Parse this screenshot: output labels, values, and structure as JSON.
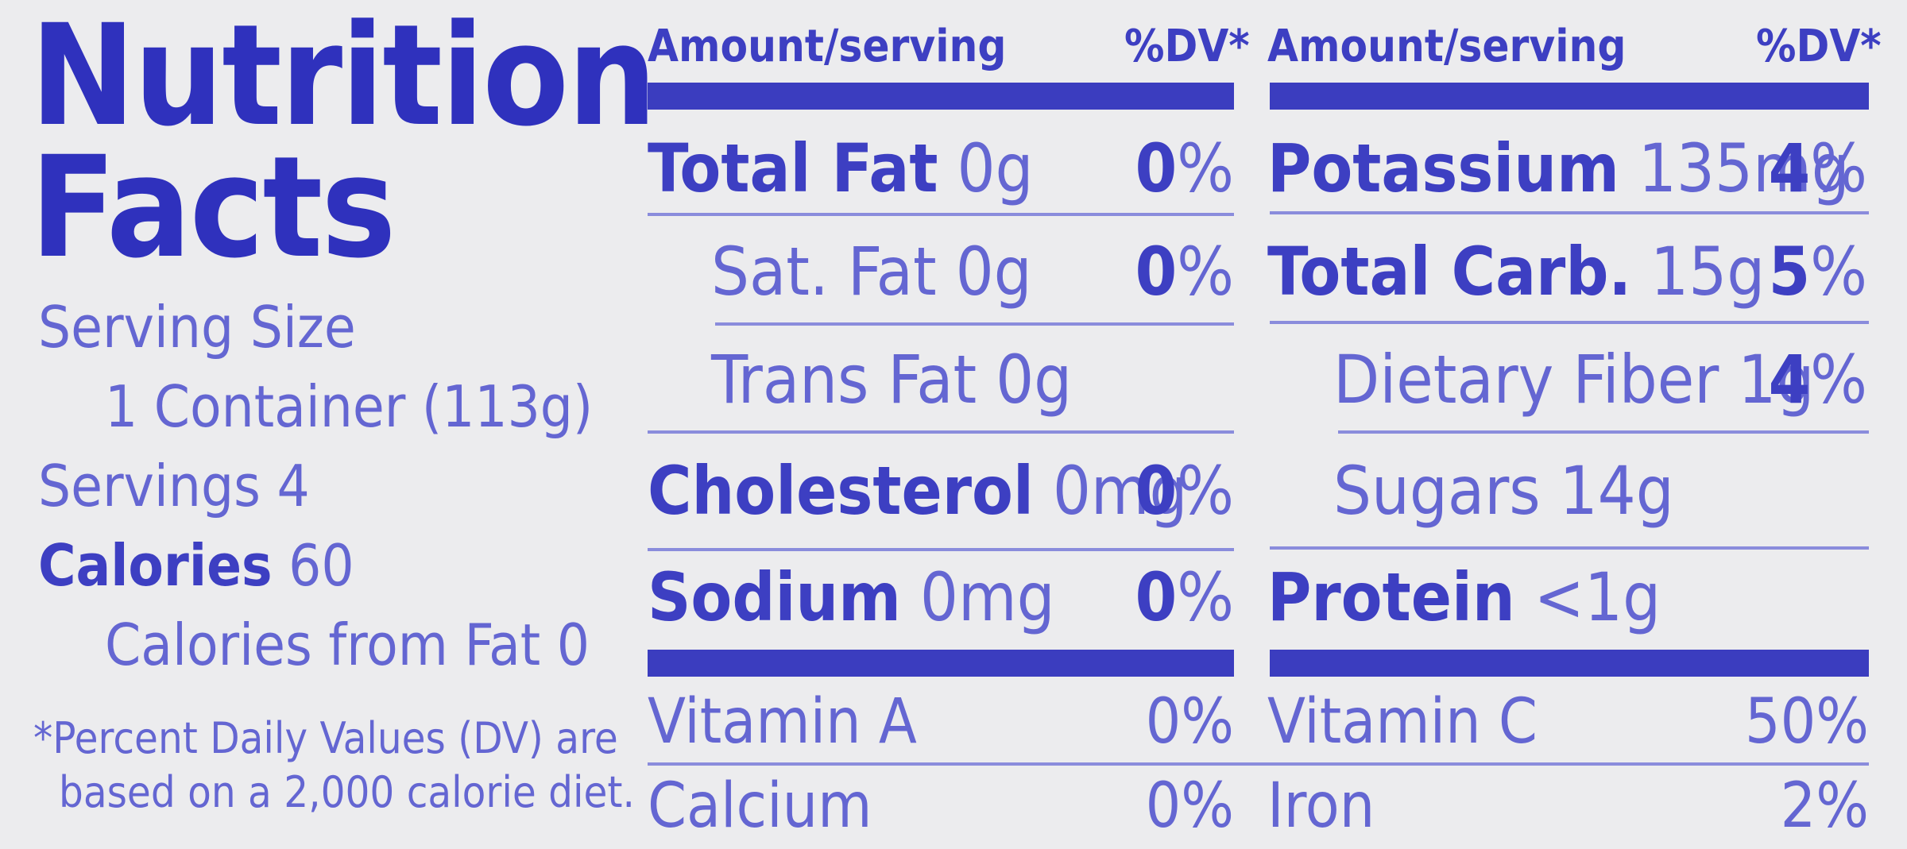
{
  "title_line1": "Nutrition",
  "title_line2": "Facts",
  "serving": {
    "size_label": "Serving Size",
    "size_value": "1 Container (113g)",
    "servings_label": "Servings 4",
    "calories_label": "Calories",
    "calories_value": " 60",
    "calories_from_fat": "Calories from Fat 0"
  },
  "footnote": {
    "line1": "*Percent Daily Values (DV) are",
    "line2": "based on a 2,000 calorie diet."
  },
  "left_table": {
    "header_amount": "Amount/serving",
    "header_dv": "%DV*",
    "rows": [
      {
        "name": "Total Fat",
        "amount": " 0g",
        "dv_num": "0",
        "dv_sign": "%"
      },
      {
        "name": "",
        "amount": "Sat. Fat 0g",
        "dv_num": "0",
        "dv_sign": "%"
      },
      {
        "name": "",
        "amount": "Trans Fat 0g",
        "dv_num": "",
        "dv_sign": ""
      },
      {
        "name": "Cholesterol",
        "amount": " 0mg",
        "dv_num": "0",
        "dv_sign": "%"
      },
      {
        "name": "Sodium",
        "amount": " 0mg",
        "dv_num": "0",
        "dv_sign": "%"
      }
    ],
    "vitamins": [
      {
        "name": "Vitamin A",
        "dv": "0%"
      },
      {
        "name": "Calcium",
        "dv": "0%"
      }
    ]
  },
  "right_table": {
    "header_amount": "Amount/serving",
    "header_dv": "%DV*",
    "rows": [
      {
        "name": "Potassium",
        "amount": " 135mg",
        "dv_num": "4",
        "dv_sign": "%"
      },
      {
        "name": "Total Carb.",
        "amount": " 15g",
        "dv_num": "5",
        "dv_sign": "%"
      },
      {
        "name": "",
        "amount": "Dietary Fiber 1g",
        "dv_num": "4",
        "dv_sign": "%"
      },
      {
        "name": "",
        "amount": "Sugars 14g",
        "dv_num": "",
        "dv_sign": ""
      },
      {
        "name": "Protein",
        "amount": " <1g",
        "dv_num": "",
        "dv_sign": ""
      }
    ],
    "vitamins": [
      {
        "name": "Vitamin C",
        "dv": "50%"
      },
      {
        "name": "Iron",
        "dv": "2%"
      }
    ]
  },
  "colors": {
    "ink": "#3d3fc2",
    "light_ink": "#6466d2",
    "background": "#ececee"
  }
}
